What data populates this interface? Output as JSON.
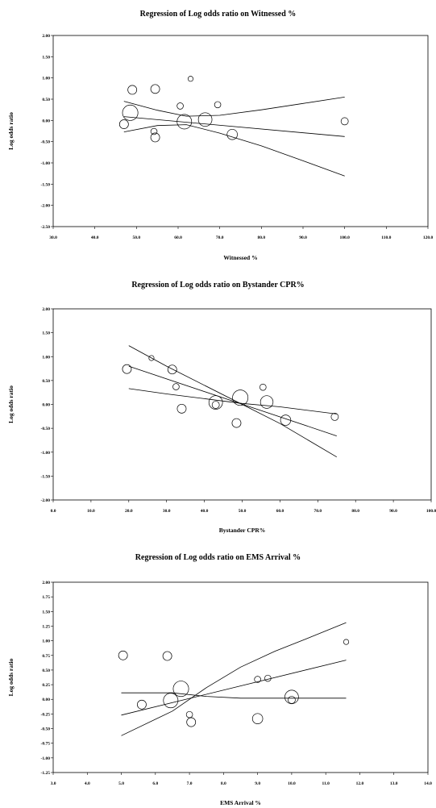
{
  "chart_data": [
    {
      "type": "scatter",
      "title": "Regression of Log odds ratio on Witnessed %",
      "xlabel": "Witnessed %",
      "ylabel": "Log odds ratio",
      "xlim": [
        30,
        120
      ],
      "ylim": [
        -2.5,
        2.0
      ],
      "xticks": [
        "30.0",
        "40.0",
        "50.0",
        "60.0",
        "70.0",
        "80.0",
        "90.0",
        "100.0",
        "110.0",
        "120.0"
      ],
      "yticks": [
        "2.00",
        "1.50",
        "1.00",
        "0.50",
        "0.00",
        "-0.50",
        "-1.00",
        "-1.50",
        "-2.00",
        "-2.50"
      ],
      "points": [
        {
          "x": 48.5,
          "y": 0.18,
          "w": 9
        },
        {
          "x": 47.0,
          "y": -0.09,
          "w": 3
        },
        {
          "x": 49.0,
          "y": 0.72,
          "w": 3
        },
        {
          "x": 54.5,
          "y": 0.74,
          "w": 3
        },
        {
          "x": 54.2,
          "y": -0.26,
          "w": 1.5
        },
        {
          "x": 54.5,
          "y": -0.4,
          "w": 3
        },
        {
          "x": 60.5,
          "y": 0.34,
          "w": 1.5
        },
        {
          "x": 63.0,
          "y": 0.98,
          "w": 1
        },
        {
          "x": 61.5,
          "y": -0.03,
          "w": 8
        },
        {
          "x": 66.5,
          "y": 0.02,
          "w": 7
        },
        {
          "x": 69.5,
          "y": 0.37,
          "w": 1.5
        },
        {
          "x": 73.0,
          "y": -0.33,
          "w": 4
        },
        {
          "x": 100.0,
          "y": -0.02,
          "w": 2
        }
      ],
      "regression": {
        "x": [
          47,
          100
        ],
        "y": [
          0.09,
          -0.38
        ]
      },
      "ci_upper": {
        "x": [
          47,
          55,
          62,
          70,
          80,
          90,
          100
        ],
        "y": [
          0.45,
          0.24,
          0.1,
          0.12,
          0.25,
          0.4,
          0.55
        ]
      },
      "ci_lower": {
        "x": [
          47,
          55,
          62,
          70,
          80,
          90,
          100
        ],
        "y": [
          -0.27,
          -0.12,
          -0.1,
          -0.3,
          -0.6,
          -0.95,
          -1.31
        ]
      }
    },
    {
      "type": "scatter",
      "title": "Regression of Log odds ratio on Bystander CPR%",
      "xlabel": "Bystander CPR%",
      "ylabel": "Log odds ratio",
      "xlim": [
        0,
        100
      ],
      "ylim": [
        -2.0,
        2.0
      ],
      "xticks": [
        "0.0",
        "10.0",
        "20.0",
        "30.0",
        "40.0",
        "50.0",
        "60.0",
        "70.0",
        "80.0",
        "90.0",
        "100.0"
      ],
      "yticks": [
        "2.00",
        "1.50",
        "1.00",
        "0.50",
        "0.00",
        "-0.50",
        "-1.00",
        "-1.50",
        "-2.00"
      ],
      "points": [
        {
          "x": 19.5,
          "y": 0.74,
          "w": 3
        },
        {
          "x": 26.0,
          "y": 0.97,
          "w": 1
        },
        {
          "x": 31.5,
          "y": 0.73,
          "w": 3
        },
        {
          "x": 32.5,
          "y": 0.37,
          "w": 1.5
        },
        {
          "x": 34.0,
          "y": -0.09,
          "w": 3
        },
        {
          "x": 43.0,
          "y": -0.01,
          "w": 2
        },
        {
          "x": 43.0,
          "y": 0.04,
          "w": 7
        },
        {
          "x": 48.5,
          "y": -0.39,
          "w": 3
        },
        {
          "x": 49.5,
          "y": 0.14,
          "w": 9
        },
        {
          "x": 55.5,
          "y": 0.36,
          "w": 1.5
        },
        {
          "x": 56.5,
          "y": 0.05,
          "w": 6
        },
        {
          "x": 61.5,
          "y": -0.33,
          "w": 4
        },
        {
          "x": 74.5,
          "y": -0.26,
          "w": 2
        }
      ],
      "regression": {
        "x": [
          20,
          75
        ],
        "y": [
          0.8,
          -0.66
        ]
      },
      "ci_upper": {
        "x": [
          20,
          30,
          40,
          50,
          60,
          75
        ],
        "y": [
          0.33,
          0.22,
          0.12,
          0.02,
          -0.05,
          -0.2
        ]
      },
      "ci_lower": {
        "x": [
          20,
          30,
          40,
          50,
          60,
          75
        ],
        "y": [
          1.23,
          0.8,
          0.4,
          0.0,
          -0.4,
          -1.1
        ]
      }
    },
    {
      "type": "scatter",
      "title": "Regression of Log odds ratio on EMS Arrival %",
      "xlabel": "EMS Arrival %",
      "ylabel": "Log odds ratio",
      "xlim": [
        3.0,
        14.0
      ],
      "ylim": [
        -1.25,
        2.0
      ],
      "xticks": [
        "3.0",
        "4.0",
        "5.0",
        "6.0",
        "7.0",
        "8.0",
        "9.0",
        "10.0",
        "11.0",
        "12.0",
        "13.0",
        "14.0"
      ],
      "yticks": [
        "2.00",
        "1.75",
        "1.50",
        "1.25",
        "1.00",
        "0.75",
        "0.50",
        "0.25",
        "0.00",
        "-0.25",
        "-0.50",
        "-0.75",
        "-1.00",
        "-1.25"
      ],
      "points": [
        {
          "x": 5.05,
          "y": 0.75,
          "w": 3
        },
        {
          "x": 5.6,
          "y": -0.09,
          "w": 3
        },
        {
          "x": 6.35,
          "y": 0.74,
          "w": 3
        },
        {
          "x": 6.45,
          "y": -0.02,
          "w": 8
        },
        {
          "x": 6.75,
          "y": 0.18,
          "w": 9
        },
        {
          "x": 7.0,
          "y": -0.26,
          "w": 1.5
        },
        {
          "x": 7.05,
          "y": -0.39,
          "w": 3
        },
        {
          "x": 9.0,
          "y": -0.33,
          "w": 4
        },
        {
          "x": 9.0,
          "y": 0.34,
          "w": 1.5
        },
        {
          "x": 9.3,
          "y": 0.36,
          "w": 1.5
        },
        {
          "x": 10.0,
          "y": -0.01,
          "w": 2
        },
        {
          "x": 10.0,
          "y": 0.04,
          "w": 7
        },
        {
          "x": 11.6,
          "y": 0.98,
          "w": 1
        }
      ],
      "regression": {
        "x": [
          5,
          11.6
        ],
        "y": [
          -0.27,
          0.67
        ]
      },
      "ci_upper": {
        "x": [
          5,
          6.5,
          7.5,
          8.5,
          9.5,
          10.5,
          11.6
        ],
        "y": [
          -0.62,
          -0.2,
          0.2,
          0.55,
          0.82,
          1.05,
          1.31
        ]
      },
      "ci_lower": {
        "x": [
          5,
          6,
          6.5,
          7.5,
          8.5,
          9.5,
          11.6
        ],
        "y": [
          0.11,
          0.11,
          0.11,
          0.05,
          0.02,
          0.02,
          0.02
        ]
      }
    }
  ]
}
